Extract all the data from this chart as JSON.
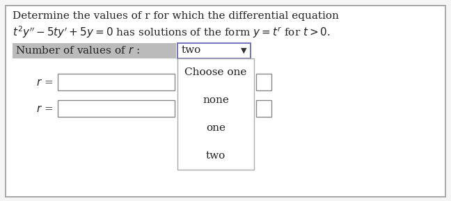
{
  "bg_color": "#f5f5f5",
  "outer_bg": "#ffffff",
  "outer_border_color": "#999999",
  "title_line1": "Determine the values of r for which the differential equation",
  "title_line2_normal": "has solutions of the form ",
  "title_line2_math1": "$t^2y'' - 5ty' + 5y = 0$",
  "title_line2_math2": "$y = t^r$",
  "title_line2_suffix": " for $t > 0$.",
  "label_number": "Number of values of r :",
  "label_number_bg": "#bbbbbb",
  "dropdown_text": "two",
  "dropdown_border": "#7777bb",
  "dropdown_bg": "#ffffff",
  "menu_bg": "#ffffff",
  "menu_border": "#aaaaaa",
  "menu_items": [
    "Choose one",
    "none",
    "one",
    "two"
  ],
  "r_label": "$r$ =",
  "input_box_border": "#888888",
  "input_box_bg": "#ffffff",
  "font_size_title": 11,
  "font_size_label": 11,
  "font_size_menu": 11
}
